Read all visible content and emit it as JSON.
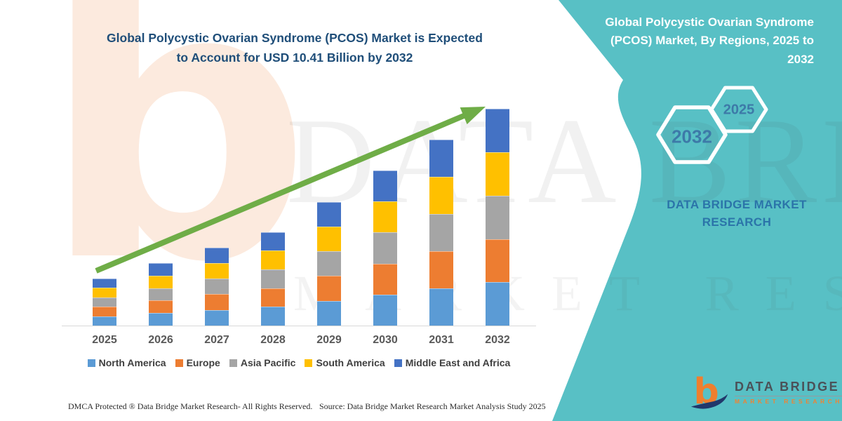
{
  "left_panel": {
    "title_line1": "Global Polycystic Ovarian Syndrome (PCOS) Market is Expected",
    "title_line2": "to Account for USD 10.41 Billion by 2032"
  },
  "chart_data": {
    "type": "bar",
    "stacked": true,
    "title": "Global Polycystic Ovarian Syndrome (PCOS) Market is Expected to Account for USD 10.41 Billion by 2032",
    "unit": "USD Billion",
    "categories": [
      "2025",
      "2026",
      "2027",
      "2028",
      "2029",
      "2030",
      "2031",
      "2032"
    ],
    "series": [
      {
        "name": "North America",
        "color": "#5B9BD5",
        "values": [
          0.45,
          0.6,
          0.75,
          0.9,
          1.19,
          1.49,
          1.79,
          2.08
        ]
      },
      {
        "name": "Europe",
        "color": "#ED7D31",
        "values": [
          0.45,
          0.6,
          0.75,
          0.9,
          1.19,
          1.49,
          1.79,
          2.08
        ]
      },
      {
        "name": "Asia Pacific",
        "color": "#A5A5A5",
        "values": [
          0.45,
          0.6,
          0.75,
          0.9,
          1.19,
          1.49,
          1.79,
          2.08
        ]
      },
      {
        "name": "South America",
        "color": "#FFC000",
        "values": [
          0.45,
          0.6,
          0.75,
          0.9,
          1.19,
          1.49,
          1.79,
          2.09
        ]
      },
      {
        "name": "Middle East and Africa",
        "color": "#4472C4",
        "values": [
          0.45,
          0.6,
          0.75,
          0.9,
          1.19,
          1.49,
          1.79,
          2.08
        ]
      }
    ],
    "totals": [
      2.25,
      3.0,
      3.75,
      4.5,
      5.95,
      7.45,
      8.95,
      10.41
    ],
    "highlight_value": "USD 10.41 Billion by 2032",
    "ylim": [
      0,
      10.92
    ],
    "grid": false,
    "legend_position": "bottom",
    "trend_arrow_color": "#6FAD47"
  },
  "right_panel": {
    "title": "Global Polycystic Ovarian Syndrome (PCOS) Market, By Regions, 2025 to 2032",
    "hexagons": [
      {
        "label": "2032"
      },
      {
        "label": "2025"
      }
    ],
    "brand_line1": "DATA BRIDGE MARKET",
    "brand_line2": "RESEARCH",
    "background_color": "#58C0C5"
  },
  "watermarks": {
    "row1": "DATA BRIDGE",
    "row2": "MARKET RESEARCH",
    "logo_letter": "b"
  },
  "footer": {
    "dmca": "DMCA Protected ® Data Bridge Market Research-  All Rights Reserved.",
    "source": "Source: Data Bridge Market Research  Market Analysis Study 2025",
    "logo": {
      "mark_letter": "b",
      "brand": "DATA BRIDGE",
      "sub": "MARKET RESEARCH"
    }
  }
}
